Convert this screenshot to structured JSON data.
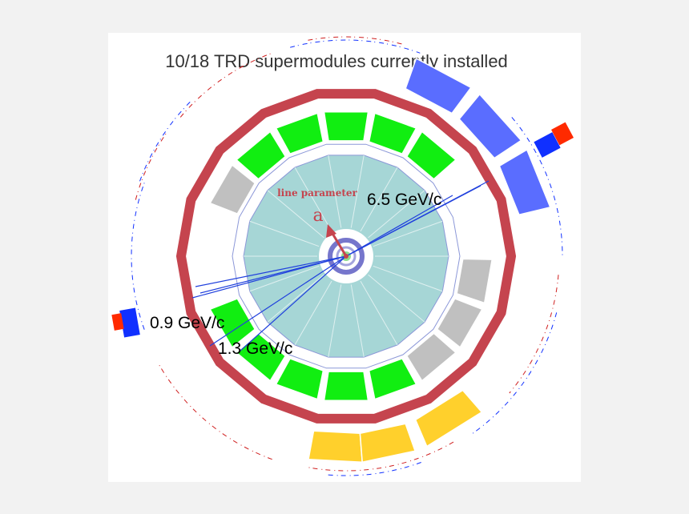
{
  "title": "10/18 TRD supermodules currently installed",
  "labels": {
    "line_parameter": "line parameter",
    "param_symbol": "a",
    "momenta": [
      "6.5 GeV/c",
      "0.9 GeV/c",
      "1.3 GeV/c"
    ]
  },
  "supermodules": {
    "total": 18,
    "installed": 10,
    "states": [
      "empty",
      "empty",
      "empty",
      "empty",
      "empty",
      "installed",
      "installed",
      "installed",
      "installed",
      "installed",
      "empty",
      "empty",
      "empty",
      "installed",
      "installed",
      "installed",
      "installed",
      "installed"
    ]
  },
  "outer_detectors": {
    "blue_modules": 3,
    "yellow_modules": 3
  },
  "colors": {
    "background": "#f2f2f2",
    "panel": "#ffffff",
    "outer_ring": "#c5444e",
    "installed_module": "#11ee11",
    "empty_module": "#c0c0c0",
    "tpc": "#a6d6d6",
    "blue_module": "#5a6dff",
    "yellow_module": "#ffd02c",
    "tracks": "#2040dd",
    "vertex_arrow": "#c5444e",
    "red_marker": "#ff2a00",
    "blue_marker": "#1030ff"
  }
}
